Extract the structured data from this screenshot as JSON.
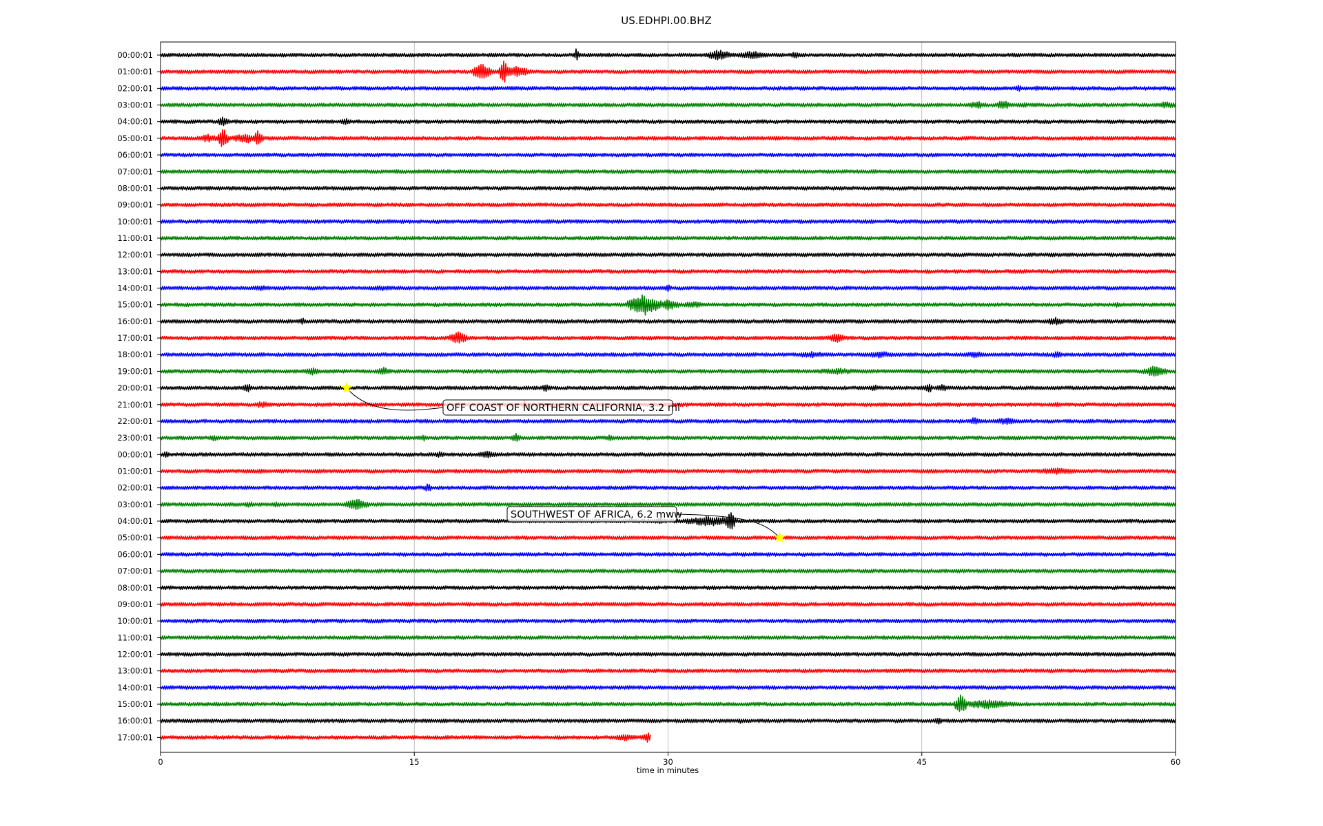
{
  "chart_data": {
    "type": "line",
    "title": "US.EDHPI.00.BHZ",
    "xlabel": "time in minutes",
    "ylabel": "",
    "xlim": [
      0,
      60
    ],
    "xticks": [
      0,
      15,
      30,
      45,
      60
    ],
    "xtick_labels": [
      "0",
      "15",
      "30",
      "45",
      "60"
    ],
    "grid": "vertical lines at x ticks",
    "row_labels": [
      "00:00:01",
      "01:00:01",
      "02:00:01",
      "03:00:01",
      "04:00:01",
      "05:00:01",
      "06:00:01",
      "07:00:01",
      "08:00:01",
      "09:00:01",
      "10:00:01",
      "11:00:01",
      "12:00:01",
      "13:00:01",
      "14:00:01",
      "15:00:01",
      "16:00:01",
      "17:00:01",
      "18:00:01",
      "19:00:01",
      "20:00:01",
      "21:00:01",
      "22:00:01",
      "23:00:01",
      "00:00:01",
      "01:00:01",
      "02:00:01",
      "03:00:01",
      "04:00:01",
      "05:00:01",
      "06:00:01",
      "07:00:01",
      "08:00:01",
      "09:00:01",
      "10:00:01",
      "11:00:01",
      "12:00:01",
      "13:00:01",
      "14:00:01",
      "15:00:01",
      "16:00:01",
      "17:00:01"
    ],
    "trace_colors": [
      "#000000",
      "#ff0000",
      "#0000ff",
      "#008000"
    ],
    "last_row_end_minute": 29,
    "events": [
      {
        "row": 20,
        "minute": 11.0,
        "label": "OFF COAST OF NORTHERN CALIFORNIA, 3.2 ml"
      },
      {
        "row": 29,
        "minute": 36.6,
        "label": "SOUTHWEST OF AFRICA, 6.2 mww"
      }
    ],
    "bursts": [
      {
        "row": 0,
        "minute": 24.6,
        "amp": 1.1,
        "width": 0.15
      },
      {
        "row": 0,
        "minute": 33.0,
        "amp": 0.8,
        "width": 0.8
      },
      {
        "row": 0,
        "minute": 35.0,
        "amp": 0.6,
        "width": 1.0
      },
      {
        "row": 0,
        "minute": 37.5,
        "amp": 0.5,
        "width": 0.3
      },
      {
        "row": 1,
        "minute": 19.0,
        "amp": 1.2,
        "width": 0.6
      },
      {
        "row": 1,
        "minute": 20.3,
        "amp": 1.7,
        "width": 0.3
      },
      {
        "row": 1,
        "minute": 21.0,
        "amp": 0.8,
        "width": 1.0
      },
      {
        "row": 2,
        "minute": 50.7,
        "amp": 0.5,
        "width": 0.3
      },
      {
        "row": 2,
        "minute": 51.8,
        "amp": 0.4,
        "width": 0.3
      },
      {
        "row": 3,
        "minute": 48.3,
        "amp": 0.6,
        "width": 0.6
      },
      {
        "row": 3,
        "minute": 49.8,
        "amp": 0.8,
        "width": 0.4
      },
      {
        "row": 3,
        "minute": 51.0,
        "amp": 0.4,
        "width": 0.5
      },
      {
        "row": 3,
        "minute": 59.5,
        "amp": 0.5,
        "width": 1.0
      },
      {
        "row": 4,
        "minute": 3.7,
        "amp": 0.7,
        "width": 0.4
      },
      {
        "row": 4,
        "minute": 11.0,
        "amp": 0.5,
        "width": 0.4
      },
      {
        "row": 5,
        "minute": 2.8,
        "amp": 0.6,
        "width": 0.8
      },
      {
        "row": 5,
        "minute": 3.7,
        "amp": 1.6,
        "width": 0.3
      },
      {
        "row": 5,
        "minute": 5.0,
        "amp": 0.8,
        "width": 0.8
      },
      {
        "row": 5,
        "minute": 5.8,
        "amp": 1.3,
        "width": 0.3
      },
      {
        "row": 11,
        "minute": 57.0,
        "amp": 0.3,
        "width": 0.2
      },
      {
        "row": 14,
        "minute": 6.0,
        "amp": 0.4,
        "width": 1.0
      },
      {
        "row": 14,
        "minute": 13.0,
        "amp": 0.4,
        "width": 1.0
      },
      {
        "row": 14,
        "minute": 30.0,
        "amp": 0.8,
        "width": 0.2
      },
      {
        "row": 15,
        "minute": 28.6,
        "amp": 1.6,
        "width": 1.0
      },
      {
        "row": 15,
        "minute": 30.0,
        "amp": 0.8,
        "width": 0.8
      },
      {
        "row": 15,
        "minute": 31.5,
        "amp": 0.5,
        "width": 0.8
      },
      {
        "row": 15,
        "minute": 56.5,
        "amp": 0.4,
        "width": 0.3
      },
      {
        "row": 16,
        "minute": 8.4,
        "amp": 0.5,
        "width": 0.3
      },
      {
        "row": 16,
        "minute": 52.9,
        "amp": 0.6,
        "width": 0.6
      },
      {
        "row": 17,
        "minute": 17.6,
        "amp": 0.9,
        "width": 0.6
      },
      {
        "row": 17,
        "minute": 40.0,
        "amp": 0.7,
        "width": 0.6
      },
      {
        "row": 18,
        "minute": 38.5,
        "amp": 0.5,
        "width": 1.2
      },
      {
        "row": 18,
        "minute": 42.5,
        "amp": 0.5,
        "width": 1.2
      },
      {
        "row": 18,
        "minute": 48.2,
        "amp": 0.5,
        "width": 0.8
      },
      {
        "row": 18,
        "minute": 53.0,
        "amp": 0.5,
        "width": 0.4
      },
      {
        "row": 19,
        "minute": 9.0,
        "amp": 0.6,
        "width": 0.5
      },
      {
        "row": 19,
        "minute": 13.2,
        "amp": 0.7,
        "width": 0.4
      },
      {
        "row": 19,
        "minute": 40.0,
        "amp": 0.5,
        "width": 1.5
      },
      {
        "row": 19,
        "minute": 58.8,
        "amp": 0.9,
        "width": 0.7
      },
      {
        "row": 20,
        "minute": 5.1,
        "amp": 0.8,
        "width": 0.3
      },
      {
        "row": 20,
        "minute": 14.2,
        "amp": 0.4,
        "width": 0.3
      },
      {
        "row": 20,
        "minute": 22.8,
        "amp": 0.6,
        "width": 0.3
      },
      {
        "row": 20,
        "minute": 42.2,
        "amp": 0.5,
        "width": 0.3
      },
      {
        "row": 20,
        "minute": 45.4,
        "amp": 0.9,
        "width": 0.2
      },
      {
        "row": 20,
        "minute": 46.2,
        "amp": 0.6,
        "width": 0.4
      },
      {
        "row": 21,
        "minute": 6.0,
        "amp": 0.5,
        "width": 0.7
      },
      {
        "row": 21,
        "minute": 21.5,
        "amp": 0.8,
        "width": 0.1
      },
      {
        "row": 21,
        "minute": 53.0,
        "amp": 0.4,
        "width": 0.3
      },
      {
        "row": 22,
        "minute": 48.1,
        "amp": 0.6,
        "width": 0.4
      },
      {
        "row": 22,
        "minute": 50.0,
        "amp": 0.5,
        "width": 1.0
      },
      {
        "row": 23,
        "minute": 3.2,
        "amp": 0.5,
        "width": 0.4
      },
      {
        "row": 23,
        "minute": 15.6,
        "amp": 0.5,
        "width": 0.3
      },
      {
        "row": 23,
        "minute": 21.0,
        "amp": 0.7,
        "width": 0.3
      },
      {
        "row": 23,
        "minute": 26.6,
        "amp": 0.5,
        "width": 0.3
      },
      {
        "row": 24,
        "minute": 0.3,
        "amp": 0.5,
        "width": 0.3
      },
      {
        "row": 24,
        "minute": 16.5,
        "amp": 0.5,
        "width": 0.3
      },
      {
        "row": 24,
        "minute": 19.3,
        "amp": 0.6,
        "width": 0.6
      },
      {
        "row": 25,
        "minute": 6.0,
        "amp": 0.4,
        "width": 0.3
      },
      {
        "row": 25,
        "minute": 53.0,
        "amp": 0.5,
        "width": 1.5
      },
      {
        "row": 26,
        "minute": 15.8,
        "amp": 0.6,
        "width": 0.3
      },
      {
        "row": 26,
        "minute": 56.5,
        "amp": 0.3,
        "width": 0.5
      },
      {
        "row": 27,
        "minute": 5.2,
        "amp": 0.5,
        "width": 0.4
      },
      {
        "row": 27,
        "minute": 6.8,
        "amp": 0.4,
        "width": 0.5
      },
      {
        "row": 27,
        "minute": 11.6,
        "amp": 0.8,
        "width": 0.8
      },
      {
        "row": 28,
        "minute": 29.5,
        "amp": 0.4,
        "width": 0.5
      },
      {
        "row": 28,
        "minute": 32.5,
        "amp": 0.8,
        "width": 1.6
      },
      {
        "row": 28,
        "minute": 33.7,
        "amp": 1.5,
        "width": 0.3
      },
      {
        "row": 29,
        "minute": 55.5,
        "amp": 0.3,
        "width": 0.4
      },
      {
        "row": 39,
        "minute": 47.3,
        "amp": 1.4,
        "width": 0.4
      },
      {
        "row": 39,
        "minute": 48.8,
        "amp": 0.7,
        "width": 1.8
      },
      {
        "row": 40,
        "minute": 31.5,
        "amp": 0.3,
        "width": 0.3
      },
      {
        "row": 40,
        "minute": 34.3,
        "amp": 0.4,
        "width": 0.3
      },
      {
        "row": 40,
        "minute": 46.0,
        "amp": 0.5,
        "width": 0.4
      },
      {
        "row": 41,
        "minute": 27.5,
        "amp": 0.5,
        "width": 0.8
      },
      {
        "row": 41,
        "minute": 28.8,
        "amp": 0.7,
        "width": 0.5
      }
    ]
  }
}
